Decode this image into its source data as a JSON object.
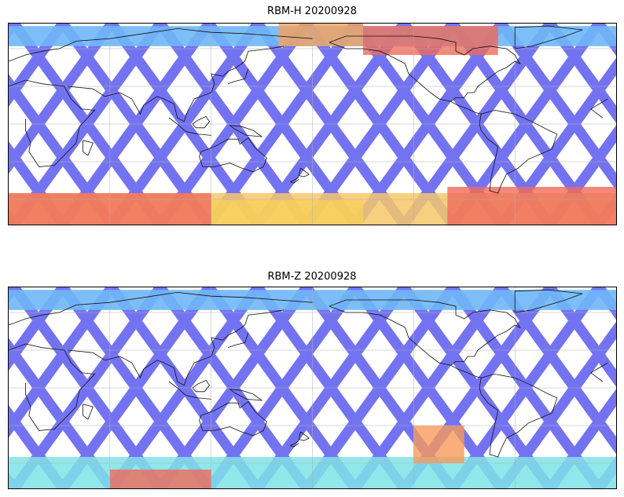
{
  "panels": [
    {
      "title": "RBM-H 20200928",
      "swath_color": "#6c6cf2",
      "hotspots": [
        {
          "lat_min": 55,
          "lat_max": 78,
          "lon_min": 210,
          "lon_max": 290,
          "color": "#f06a5a"
        },
        {
          "lat_min": 62,
          "lat_max": 80,
          "lon_min": 160,
          "lon_max": 210,
          "color": "#f7a05a"
        },
        {
          "lat_min": -80,
          "lat_max": -55,
          "lon_min": 0,
          "lon_max": 120,
          "color": "#f06a5a"
        },
        {
          "lat_min": -80,
          "lat_max": -60,
          "lon_min": 120,
          "lon_max": 210,
          "color": "#f7d05a"
        },
        {
          "lat_min": -80,
          "lat_max": -50,
          "lon_min": 260,
          "lon_max": 360,
          "color": "#f06a5a"
        }
      ],
      "warm_band_north": "#6fb7f7",
      "warm_band_south": "#f7c86a"
    },
    {
      "title": "RBM-Z 20200928",
      "swath_color": "#6c6cf2",
      "hotspots": [
        {
          "lat_min": -80,
          "lat_max": -65,
          "lon_min": 60,
          "lon_max": 120,
          "color": "#f06a5a"
        },
        {
          "lat_min": -60,
          "lat_max": -30,
          "lon_min": 240,
          "lon_max": 270,
          "color": "#f79a5a"
        }
      ],
      "warm_band_north": "#6fb7f7",
      "warm_band_south": "#7fe3e8"
    }
  ]
}
